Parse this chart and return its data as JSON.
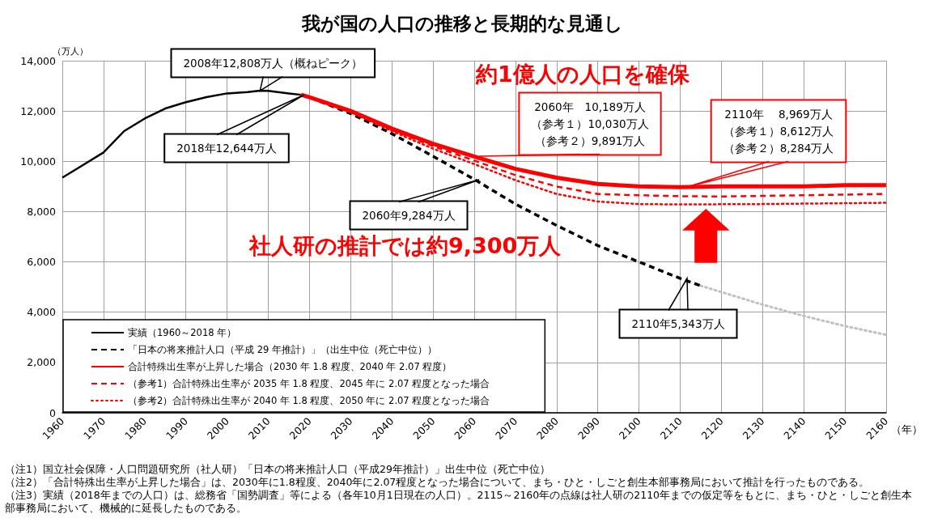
{
  "chart_data": {
    "type": "line",
    "title": "我が国の人口の推移と長期的な見通し",
    "xlabel": "（年）",
    "ylabel": "（万人）",
    "xlim": [
      1960,
      2160
    ],
    "xticks": [
      1960,
      1970,
      1980,
      1990,
      2000,
      2010,
      2020,
      2030,
      2040,
      2050,
      2060,
      2070,
      2080,
      2090,
      2100,
      2110,
      2120,
      2130,
      2140,
      2150,
      2160
    ],
    "ylim": [
      0,
      14000
    ],
    "yticks": [
      0,
      {
        "value": 2000,
        "label": "2,000"
      },
      {
        "value": 4000,
        "label": "4,000"
      },
      {
        "value": 6000,
        "label": "6,000"
      },
      {
        "value": 8000,
        "label": "8,000"
      },
      {
        "value": 10000,
        "label": "10,000"
      },
      {
        "value": 12000,
        "label": "12,000"
      },
      {
        "value": 14000,
        "label": "14,000"
      }
    ],
    "grid": true,
    "legend": "bottom left",
    "marker": "none",
    "series": [
      {
        "name": "実績（1960～2018 年）",
        "color": "#000000",
        "line_style": "solid",
        "x": [
          1960,
          1965,
          1970,
          1975,
          1980,
          1985,
          1990,
          1995,
          2000,
          2005,
          2008,
          2010,
          2015,
          2018
        ],
        "values": [
          9350,
          9850,
          10350,
          11200,
          11700,
          12100,
          12350,
          12550,
          12700,
          12750,
          12808,
          12800,
          12700,
          12644
        ]
      },
      {
        "name": "「日本の将来推計人口（平成 29 年推計）」（出生中位（死亡中位））",
        "color": "#000000",
        "line_style": "dashed",
        "x": [
          2018,
          2020,
          2030,
          2040,
          2050,
          2060,
          2070,
          2080,
          2090,
          2100,
          2110,
          2115
        ],
        "values": [
          12644,
          12550,
          11900,
          11100,
          10200,
          9284,
          8300,
          7450,
          6650,
          6000,
          5343,
          5050
        ]
      },
      {
        "color": "#c0c0c0",
        "line_style": "dotted",
        "x": [
          2115,
          2120,
          2130,
          2140,
          2150,
          2160
        ],
        "values": [
          5050,
          4800,
          4300,
          3850,
          3450,
          3100
        ]
      },
      {
        "name": "合計特殊出生率が上昇した場合（2030 年 1.8 程度、2040 年 2.07 程度）",
        "color": "#ff0000",
        "line_style": "solid",
        "x": [
          2018,
          2020,
          2030,
          2040,
          2050,
          2060,
          2070,
          2080,
          2090,
          2100,
          2110,
          2120,
          2130,
          2140,
          2150,
          2160
        ],
        "values": [
          12644,
          12550,
          12000,
          11300,
          10700,
          10189,
          9700,
          9350,
          9100,
          9000,
          8969,
          9000,
          9000,
          9000,
          9050,
          9050
        ]
      },
      {
        "name": "（参考1）合計特殊出生率が 2035 年 1.8 程度、2045 年に 2.07 程度となった場合",
        "color": "#ff0000",
        "line_style": "dashed",
        "x": [
          2018,
          2030,
          2040,
          2050,
          2060,
          2070,
          2080,
          2090,
          2100,
          2110,
          2120,
          2140,
          2160
        ],
        "values": [
          12644,
          12000,
          11250,
          10600,
          10030,
          9450,
          9000,
          8700,
          8650,
          8612,
          8600,
          8650,
          8700
        ]
      },
      {
        "name": "（参考2）合計特殊出生率が 2040 年 1.8 程度、2050 年に 2.07 程度となった場合",
        "color": "#ff0000",
        "line_style": "dotted",
        "x": [
          2018,
          2030,
          2040,
          2050,
          2060,
          2070,
          2080,
          2090,
          2100,
          2110,
          2130,
          2160
        ],
        "values": [
          12644,
          11950,
          11200,
          10500,
          9891,
          9250,
          8700,
          8400,
          8300,
          8284,
          8300,
          8350
        ]
      }
    ],
    "annotations": [
      {
        "text": "2008年12,808万人（概ねピーク）",
        "x": 2008,
        "y": 12808
      },
      "2018年12,644万人",
      "2060年9,284万人",
      "2060年　10,189万人（参考１）10,030万人（参考２）9,891万人",
      "2110年　 8,969万人（参考１）8,612万人（参考２）8,284万人",
      "2110年5,343万人",
      "約1億人の人口を確保",
      "社人研の推計では約9,300万人",
      "（注1）国立社会保障・人口問題研究所（社人研）「日本の将来推計人口（平成29年推計）」出生中位（死亡中位）",
      "（注2）「合計特殊出生率が上昇した場合」は、2030年に1.8程度、2040年に2.07程度となった場合について、まち・ひと・しごと創生本部事務局において推計を行ったものである。",
      "（注3）実績（2018年までの人口）は、総務省「国勢調査」等による（各年10月1日現在の人口）。2115～2160年の点線は社人研の2110年までの仮定等をもとに、まち・ひと・しごと創生本部事務局において、機械的に延長したものである。"
    ]
  }
}
